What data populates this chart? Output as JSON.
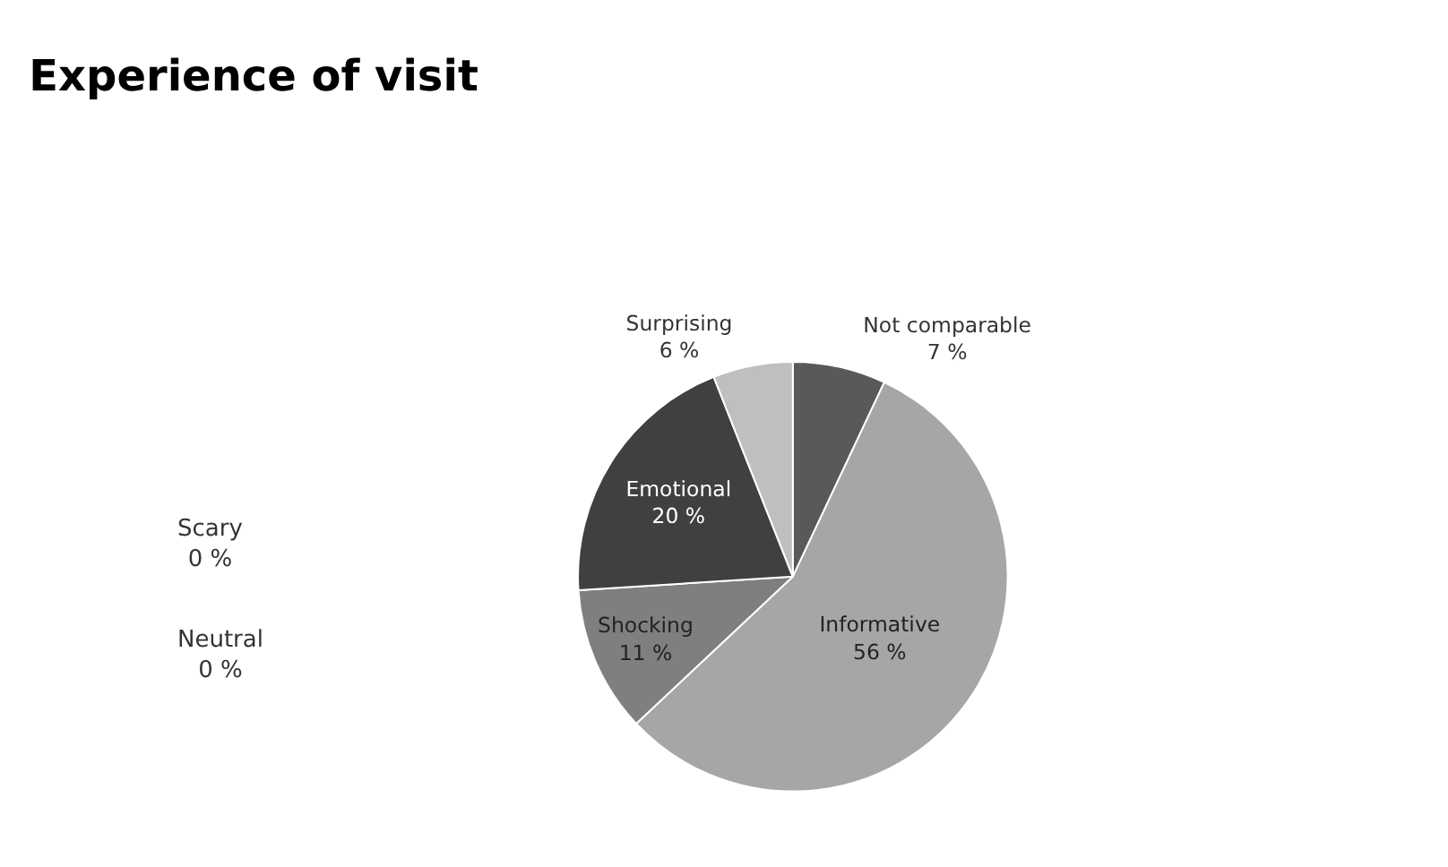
{
  "chart_data": {
    "type": "pie",
    "title": "Experience of visit",
    "categories": [
      "Not comparable",
      "Informative",
      "Scary",
      "Neutral",
      "Shocking",
      "Emotional",
      "Surprising"
    ],
    "values": [
      7,
      56,
      0,
      0,
      11,
      20,
      6
    ],
    "value_labels": [
      "7 %",
      "56 %",
      "0 %",
      "0 %",
      "11 %",
      "20 %",
      "6 %"
    ],
    "colors": [
      "#595959",
      "#a6a6a6",
      "#d9d9d9",
      "#8c8c8c",
      "#7f7f7f",
      "#404040",
      "#bfbfbf"
    ],
    "legend": false
  }
}
